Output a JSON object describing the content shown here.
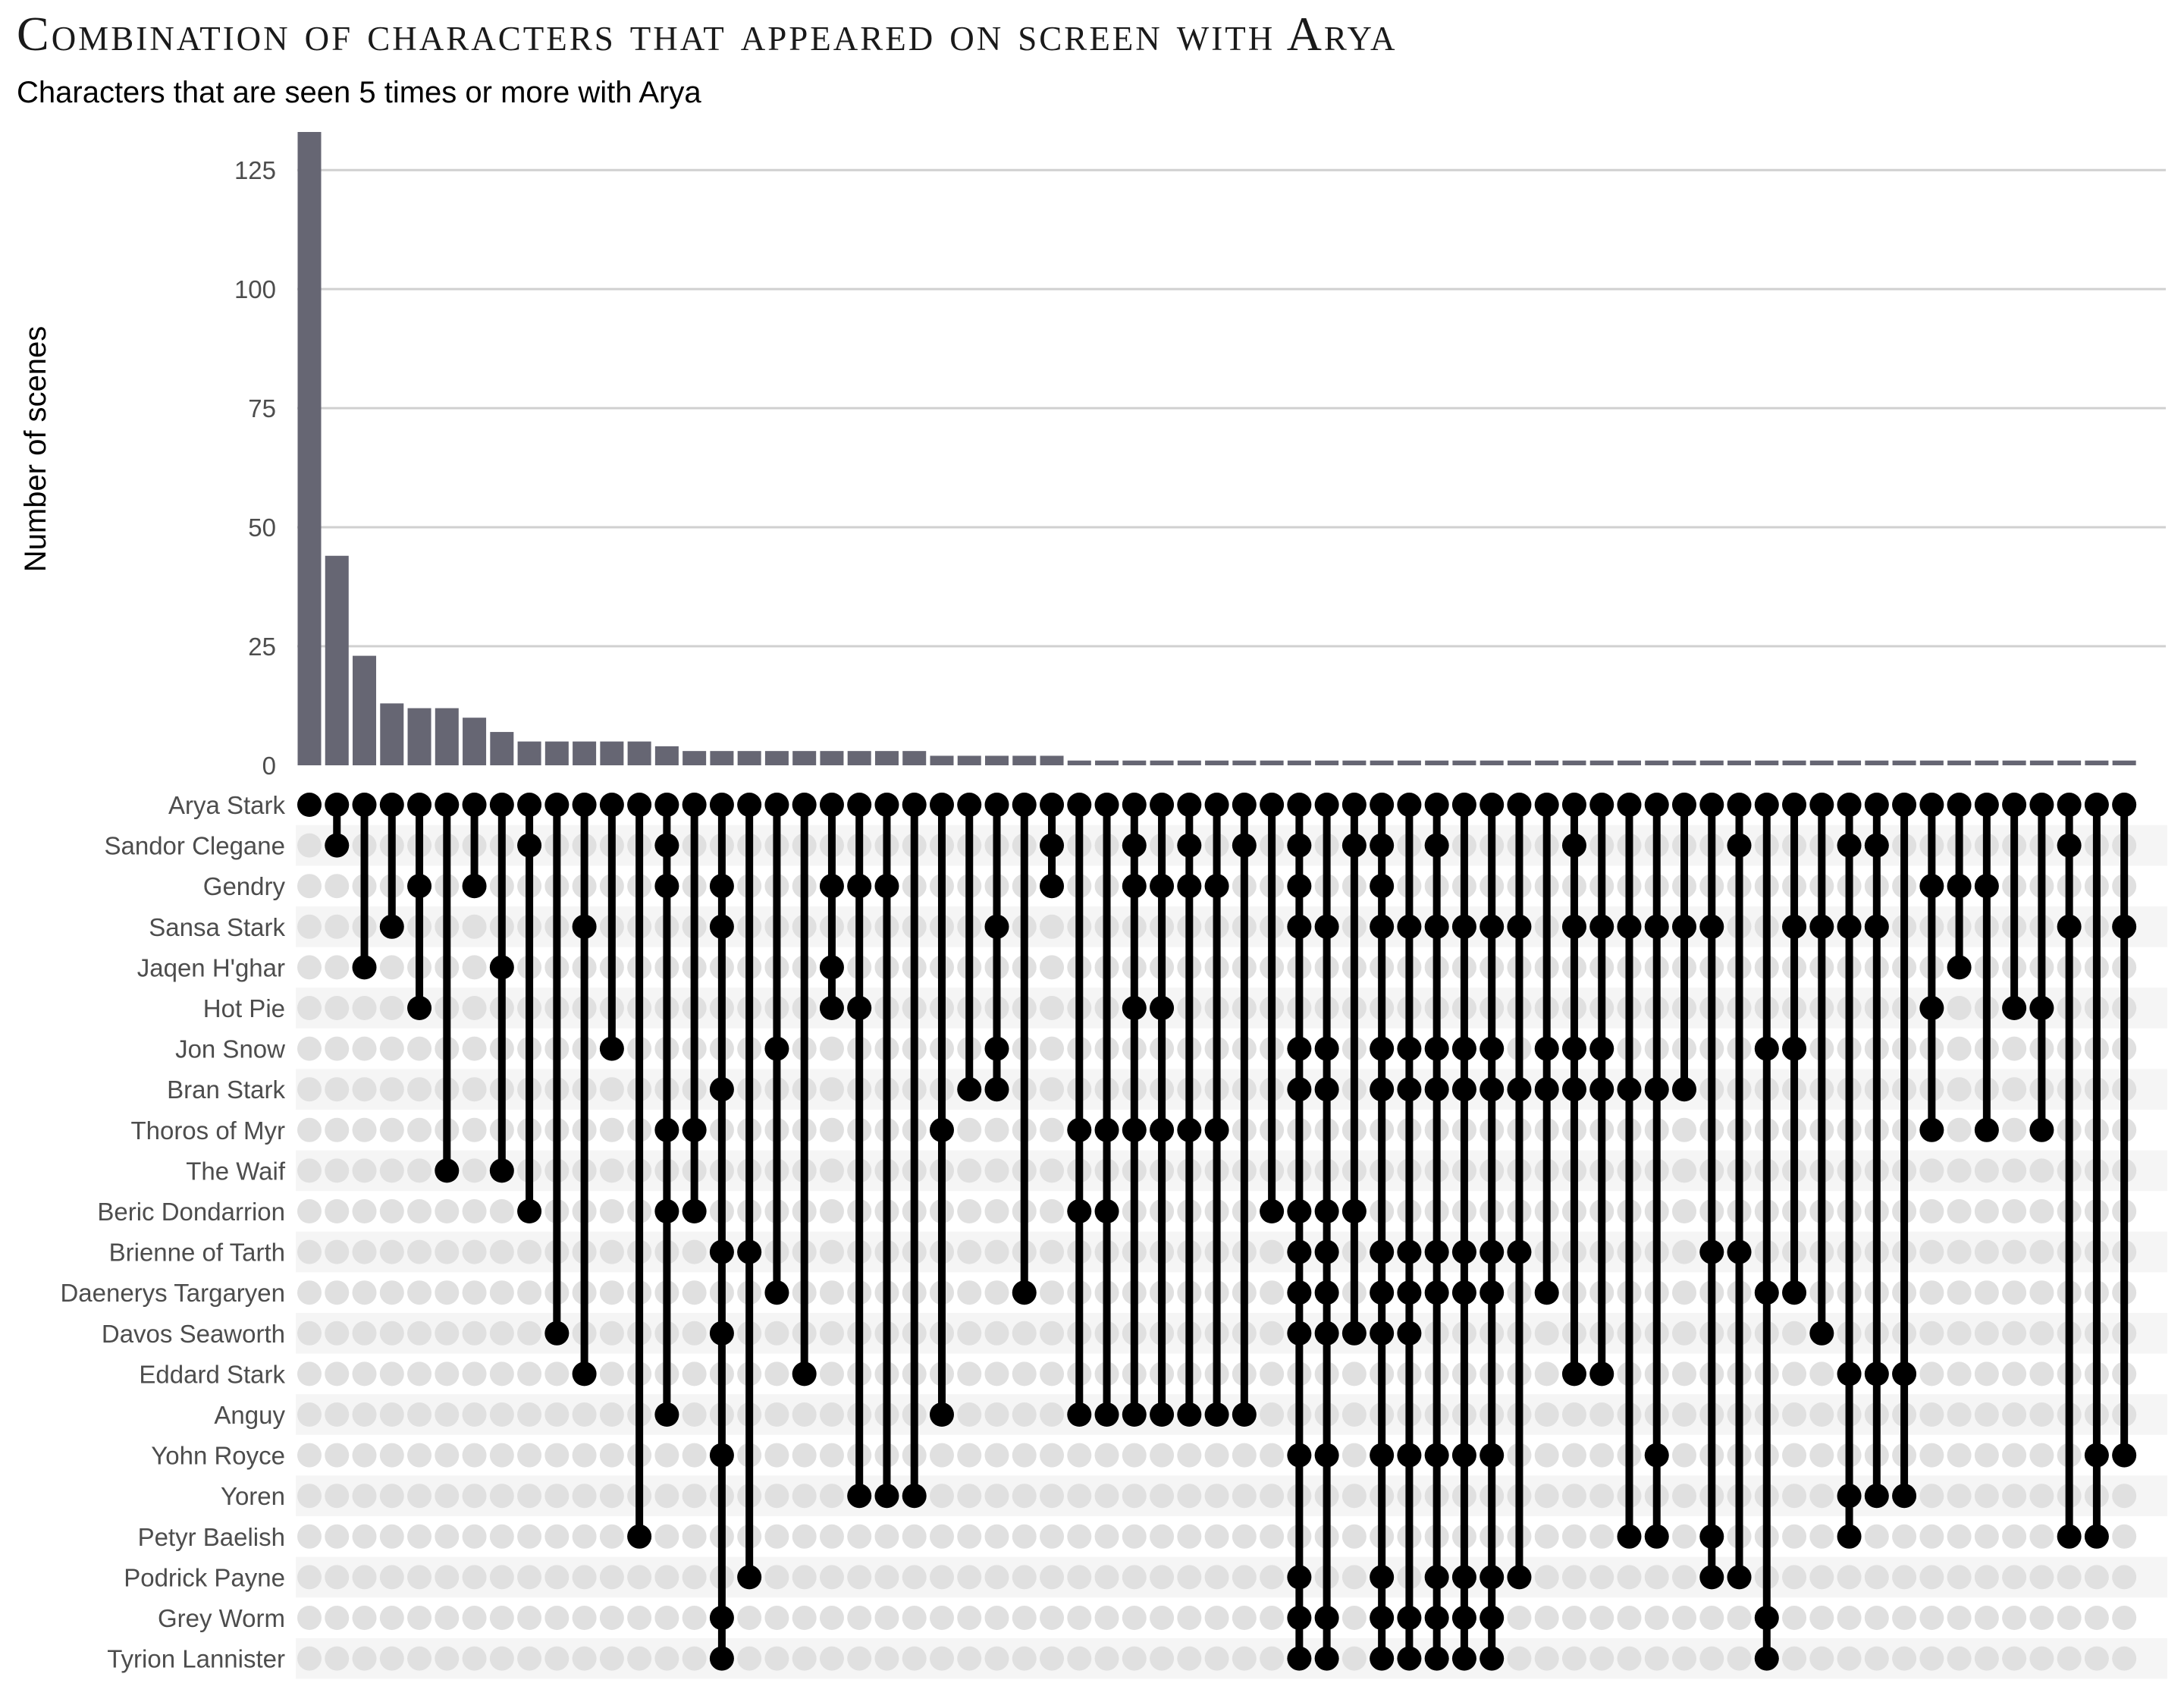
{
  "chart_data": {
    "type": "bar",
    "subtype": "upset",
    "title": "Combination of characters that appeared on screen with Arya",
    "subtitle": "Characters that are seen 5 times or more with Arya",
    "ylabel": "Number of scenes",
    "ylim": [
      0,
      133
    ],
    "yticks": [
      0,
      25,
      50,
      75,
      100,
      125
    ],
    "grid": true,
    "colors": {
      "bar": "#666673",
      "dot_active": "#000000",
      "dot_inactive": "#e0e0e0",
      "grid": "#d0d0d0",
      "stripe": "#f5f5f5"
    },
    "sets": [
      "Arya Stark",
      "Sandor Clegane",
      "Gendry",
      "Sansa Stark",
      "Jaqen H'ghar",
      "Hot Pie",
      "Jon Snow",
      "Bran Stark",
      "Thoros of Myr",
      "The Waif",
      "Beric Dondarrion",
      "Brienne of Tarth",
      "Daenerys Targaryen",
      "Davos Seaworth",
      "Eddard Stark",
      "Anguy",
      "Yohn Royce",
      "Yoren",
      "Petyr Baelish",
      "Podrick Payne",
      "Grey Worm",
      "Tyrion Lannister"
    ],
    "values": [
      133,
      44,
      23,
      13,
      12,
      12,
      10,
      7,
      5,
      5,
      5,
      5,
      5,
      4,
      3,
      3,
      3,
      3,
      3,
      3,
      3,
      3,
      3,
      2,
      2,
      2,
      2,
      2,
      1,
      1,
      1,
      1,
      1,
      1,
      1,
      1,
      1,
      1,
      1,
      1,
      1,
      1,
      1,
      1,
      1,
      1,
      1,
      1,
      1,
      1,
      1,
      1,
      1,
      1,
      1,
      1,
      1,
      1,
      1,
      1,
      1,
      1,
      1,
      1,
      1,
      1,
      1
    ],
    "combinations": [
      [
        0
      ],
      [
        0,
        1
      ],
      [
        0,
        4
      ],
      [
        0,
        3
      ],
      [
        0,
        2,
        5
      ],
      [
        0,
        9
      ],
      [
        0,
        2
      ],
      [
        0,
        4,
        9
      ],
      [
        0,
        1,
        10
      ],
      [
        0,
        13
      ],
      [
        0,
        3,
        14
      ],
      [
        0,
        6
      ],
      [
        0,
        18
      ],
      [
        0,
        1,
        2,
        8,
        10,
        15
      ],
      [
        0,
        8,
        10
      ],
      [
        0,
        2,
        3,
        7,
        11,
        13,
        16,
        20,
        21
      ],
      [
        0,
        11,
        19
      ],
      [
        0,
        6,
        12
      ],
      [
        0,
        14
      ],
      [
        0,
        2,
        4,
        5
      ],
      [
        0,
        2,
        5,
        17
      ],
      [
        0,
        2,
        17
      ],
      [
        0,
        17
      ],
      [
        0,
        8,
        15
      ],
      [
        0,
        7
      ],
      [
        0,
        3,
        6,
        7
      ],
      [
        0,
        12
      ],
      [
        0,
        1,
        2
      ],
      [
        0,
        8,
        10,
        15
      ],
      [
        0,
        8,
        10,
        15
      ],
      [
        0,
        1,
        2,
        5,
        8,
        15
      ],
      [
        0,
        2,
        5,
        8,
        15
      ],
      [
        0,
        1,
        2,
        8,
        15
      ],
      [
        0,
        2,
        8,
        15
      ],
      [
        0,
        1,
        15
      ],
      [
        0,
        10
      ],
      [
        0,
        1,
        2,
        3,
        6,
        7,
        10,
        11,
        12,
        13,
        16,
        19,
        20,
        21
      ],
      [
        0,
        3,
        6,
        7,
        10,
        11,
        12,
        13,
        16,
        20,
        21
      ],
      [
        0,
        1,
        10,
        13
      ],
      [
        0,
        1,
        2,
        3,
        6,
        7,
        11,
        12,
        13,
        16,
        19,
        20,
        21
      ],
      [
        0,
        3,
        6,
        7,
        11,
        12,
        13,
        16,
        20,
        21
      ],
      [
        0,
        1,
        3,
        6,
        7,
        11,
        12,
        16,
        19,
        20,
        21
      ],
      [
        0,
        3,
        6,
        7,
        11,
        12,
        16,
        19,
        20,
        21
      ],
      [
        0,
        3,
        6,
        7,
        11,
        12,
        16,
        19,
        20,
        21
      ],
      [
        0,
        3,
        7,
        11,
        19
      ],
      [
        0,
        6,
        7,
        12
      ],
      [
        0,
        1,
        3,
        6,
        7,
        14
      ],
      [
        0,
        3,
        6,
        7,
        14
      ],
      [
        0,
        3,
        7,
        18
      ],
      [
        0,
        3,
        7,
        16,
        18
      ],
      [
        0,
        3,
        7
      ],
      [
        0,
        3,
        11,
        18,
        19
      ],
      [
        0,
        1,
        11,
        19
      ],
      [
        0,
        6,
        12,
        20,
        21
      ],
      [
        0,
        3,
        6,
        12
      ],
      [
        0,
        3,
        13
      ],
      [
        0,
        1,
        3,
        14,
        17,
        18
      ],
      [
        0,
        1,
        3,
        14,
        17
      ],
      [
        0,
        14,
        17
      ],
      [
        0,
        2,
        5,
        8
      ],
      [
        0,
        2,
        4
      ],
      [
        0,
        2,
        8
      ],
      [
        0,
        5
      ],
      [
        0,
        5,
        8
      ],
      [
        0,
        1,
        3,
        18
      ],
      [
        0,
        16,
        18
      ],
      [
        0,
        3,
        16
      ]
    ]
  }
}
